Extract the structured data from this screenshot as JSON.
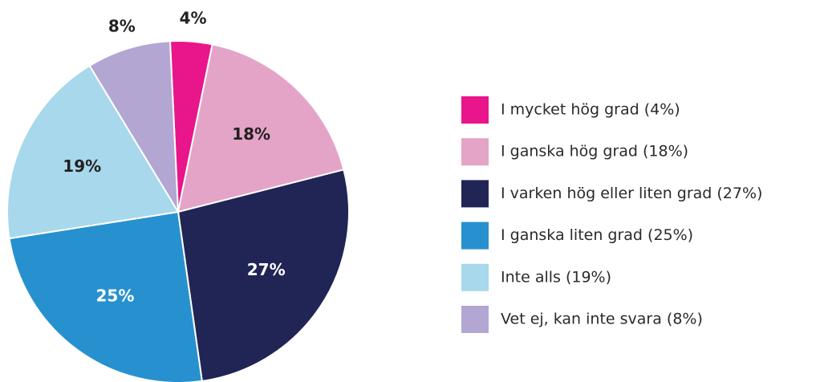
{
  "chart_data": {
    "type": "pie",
    "categories": [
      "I mycket hög grad (4%)",
      "I ganska hög grad (18%)",
      "I varken hög eller liten grad (27%)",
      "I ganska liten grad (25%)",
      "Inte alls (19%)",
      "Vet ej, kan inte svara (8%)"
    ],
    "values": [
      4,
      18,
      27,
      25,
      19,
      8
    ],
    "value_labels": [
      "4%",
      "18%",
      "27%",
      "25%",
      "19%",
      "8%"
    ],
    "colors": [
      "#e8168a",
      "#e4a4c7",
      "#212555",
      "#2791cf",
      "#a8d8ec",
      "#b3a6d2"
    ]
  }
}
